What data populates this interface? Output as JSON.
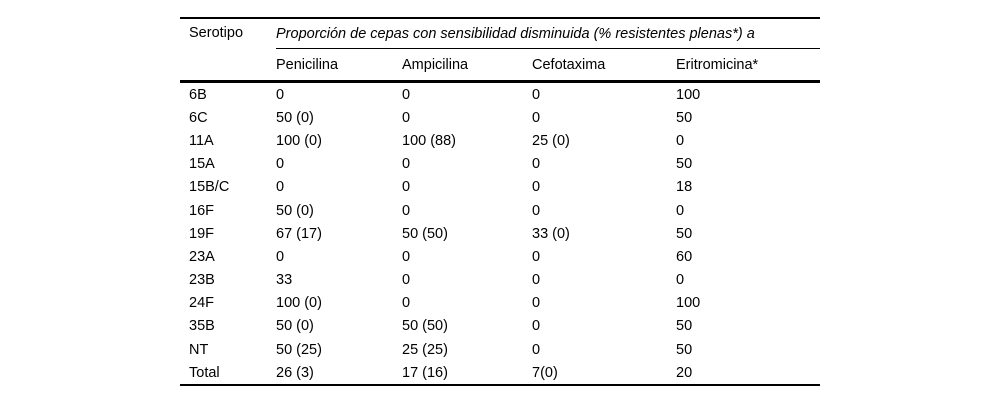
{
  "page": {
    "background": "#ffffff",
    "text_color": "#000000",
    "rule_color": "#000000"
  },
  "table": {
    "corner_header": "Serotipo",
    "span_header": "Proporción de cepas con sensibilidad disminuida (% resistentes plenas*) a",
    "columns": [
      "Penicilina",
      "Ampicilina",
      "Cefotaxima",
      "Eritromicina*"
    ],
    "rows": [
      {
        "serotype": "6B",
        "values": [
          "0",
          "0",
          "0",
          "100"
        ]
      },
      {
        "serotype": "6C",
        "values": [
          "50 (0)",
          "0",
          "0",
          "50"
        ]
      },
      {
        "serotype": "11A",
        "values": [
          "100 (0)",
          "100 (88)",
          "25 (0)",
          "0"
        ]
      },
      {
        "serotype": "15A",
        "values": [
          "0",
          "0",
          "0",
          "50"
        ]
      },
      {
        "serotype": "15B/C",
        "values": [
          "0",
          "0",
          "0",
          "18"
        ]
      },
      {
        "serotype": "16F",
        "values": [
          "50 (0)",
          "0",
          "0",
          "0"
        ]
      },
      {
        "serotype": "19F",
        "values": [
          "67 (17)",
          "50 (50)",
          "33 (0)",
          "50"
        ]
      },
      {
        "serotype": "23A",
        "values": [
          "0",
          "0",
          "0",
          "60"
        ]
      },
      {
        "serotype": "23B",
        "values": [
          "33",
          "0",
          "0",
          "0"
        ]
      },
      {
        "serotype": "24F",
        "values": [
          "100 (0)",
          "0",
          "0",
          "100"
        ]
      },
      {
        "serotype": "35B",
        "values": [
          "50 (0)",
          "50 (50)",
          "0",
          "50"
        ]
      },
      {
        "serotype": "NT",
        "values": [
          "50 (25)",
          "25 (25)",
          "0",
          "50"
        ]
      },
      {
        "serotype": "Total",
        "values": [
          "26 (3)",
          "17 (16)",
          "7(0)",
          "20"
        ]
      }
    ]
  }
}
